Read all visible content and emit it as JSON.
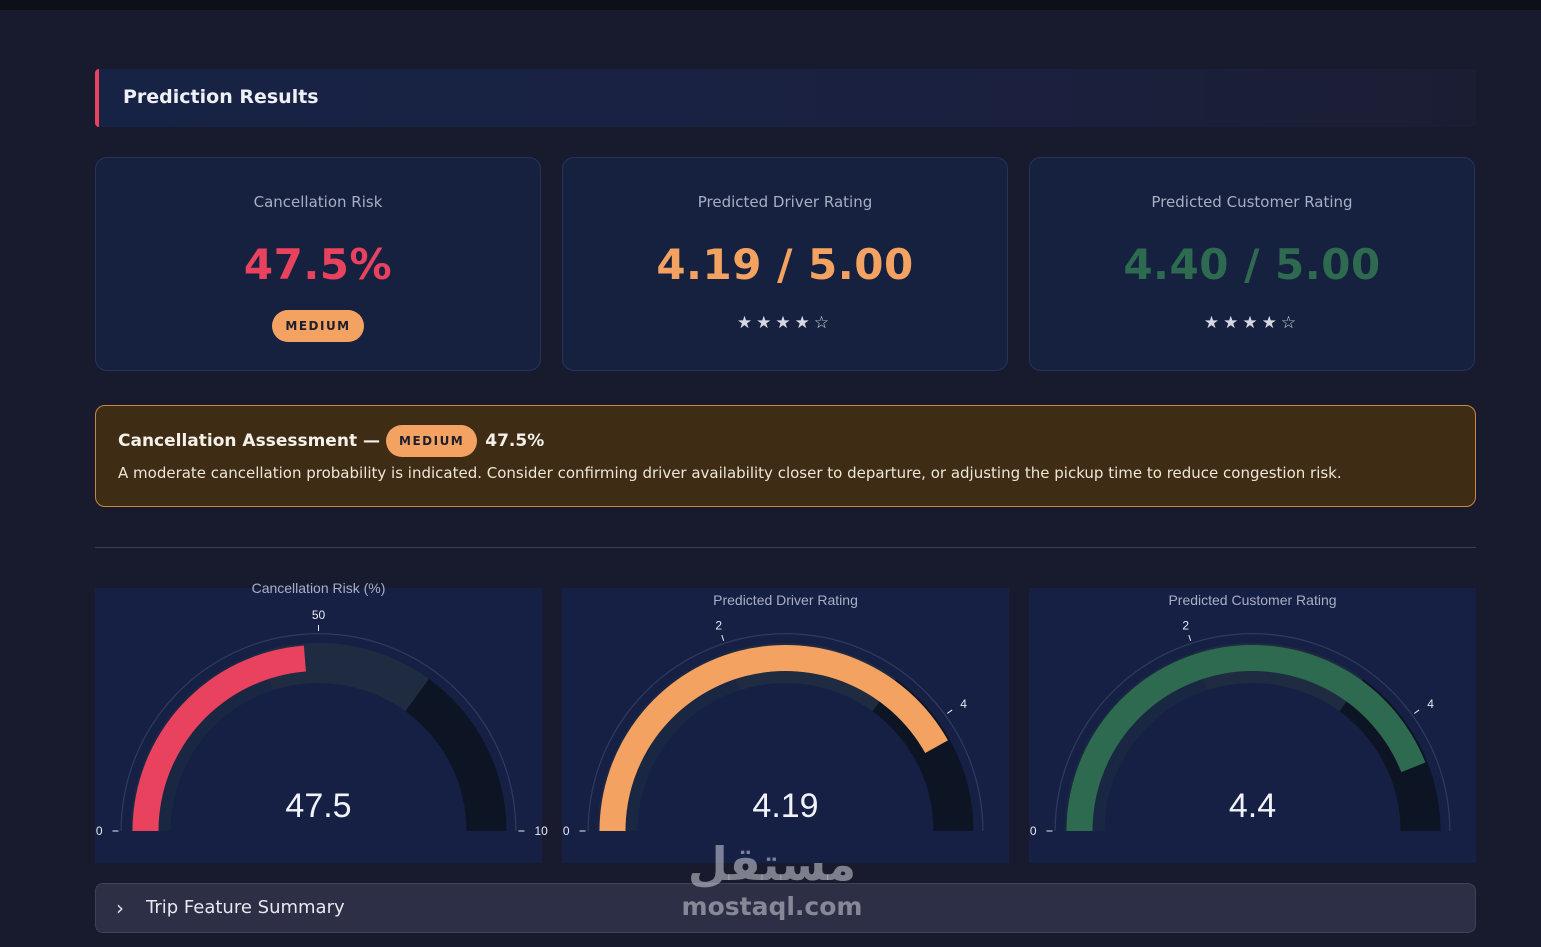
{
  "header": {
    "title": "Prediction Results"
  },
  "cards": [
    {
      "label": "Cancellation Risk",
      "value": "47.5%",
      "badge": "MEDIUM",
      "color": "#e8425f"
    },
    {
      "label": "Predicted Driver Rating",
      "value": "4.19 / 5.00",
      "stars": "★★★★☆",
      "color": "#f4a261"
    },
    {
      "label": "Predicted Customer Rating",
      "value": "4.40 / 5.00",
      "stars": "★★★★☆",
      "color": "#2d6a4f"
    }
  ],
  "assessment": {
    "title": "Cancellation Assessment —",
    "badge": "MEDIUM",
    "value": "47.5%",
    "description": "A moderate cancellation probability is indicated. Consider confirming driver availability closer to departure, or adjusting the pickup time to reduce congestion risk."
  },
  "gauges": [
    {
      "title": "Cancellation Risk (%)",
      "value": 47.5,
      "display": "47.5",
      "min": 0,
      "max": 100,
      "ticks": [
        "0",
        "50",
        "10"
      ],
      "color": "#e8425f"
    },
    {
      "title": "Predicted Driver Rating",
      "value": 4.19,
      "display": "4.19",
      "min": 0,
      "max": 5,
      "ticks": [
        "0",
        "2",
        "4"
      ],
      "color": "#f4a261"
    },
    {
      "title": "Predicted Customer Rating",
      "value": 4.4,
      "display": "4.4",
      "min": 0,
      "max": 5,
      "ticks": [
        "0",
        "2",
        "4"
      ],
      "color": "#2d6a4f"
    }
  ],
  "expander": {
    "label": "Trip Feature Summary",
    "chevron": "chevron-right-icon"
  },
  "watermark": {
    "arabic": "مستقل",
    "latin": "mostaql.com"
  },
  "colors": {
    "accent": "#e8425f",
    "medium": "#f4a261",
    "good": "#2d6a4f",
    "background": "#181b2e"
  }
}
